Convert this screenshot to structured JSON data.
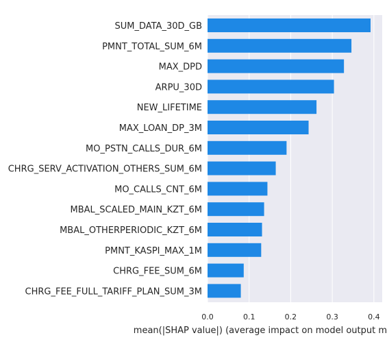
{
  "chart_data": {
    "type": "bar",
    "orientation": "horizontal",
    "categories": [
      "SUM_DATA_30D_GB",
      "PMNT_TOTAL_SUM_6M",
      "MAX_DPD",
      "ARPU_30D",
      "NEW_LIFETIME",
      "MAX_LOAN_DP_3M",
      "MO_PSTN_CALLS_DUR_6M",
      "CHRG_SERV_ACTIVATION_OTHERS_SUM_6M",
      "MO_CALLS_CNT_6M",
      "MBAL_SCALED_MAIN_KZT_6M",
      "MBAL_OTHERPERIODIC_KZT_6M",
      "PMNT_KASPI_MAX_1M",
      "CHRG_FEE_SUM_6M",
      "CHRG_FEE_FULL_TARIFF_PLAN_SUM_3M"
    ],
    "values": [
      0.392,
      0.346,
      0.328,
      0.304,
      0.262,
      0.243,
      0.19,
      0.164,
      0.144,
      0.136,
      0.131,
      0.129,
      0.087,
      0.08
    ],
    "xlabel": "mean(|SHAP value|) (average impact on model output m",
    "xlim": [
      0,
      0.42
    ],
    "xticks": [
      "0.0",
      "0.1",
      "0.2",
      "0.3",
      "0.4"
    ],
    "grid": true,
    "colors": {
      "bar": "#1e88e5",
      "plot_background": "#eaeaf2",
      "grid": "#ffffff",
      "text": "#262626"
    }
  }
}
